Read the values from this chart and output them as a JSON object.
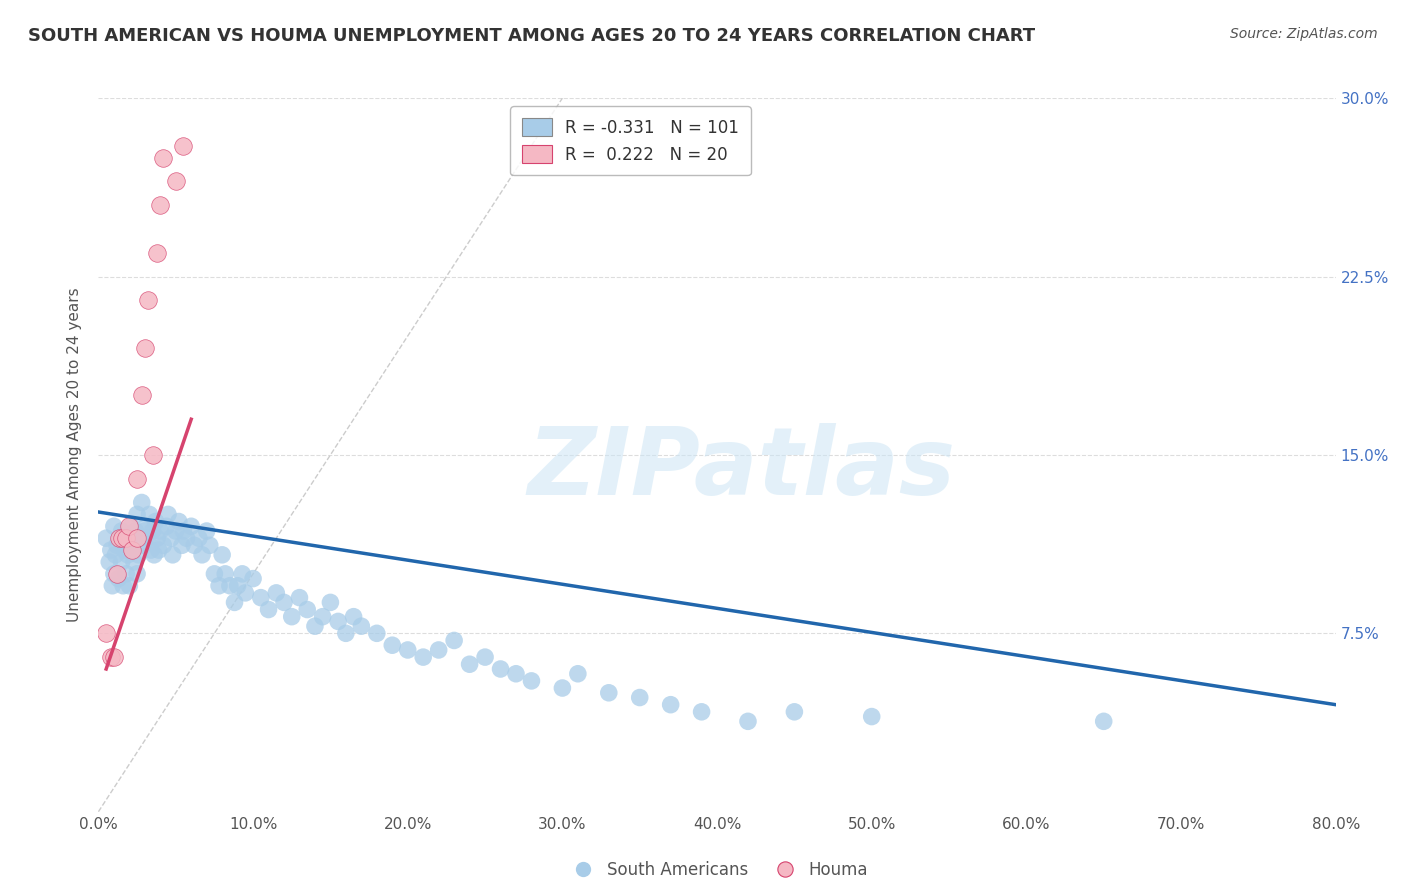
{
  "title": "SOUTH AMERICAN VS HOUMA UNEMPLOYMENT AMONG AGES 20 TO 24 YEARS CORRELATION CHART",
  "source": "Source: ZipAtlas.com",
  "ylabel": "Unemployment Among Ages 20 to 24 years",
  "xlim": [
    0,
    0.8
  ],
  "ylim": [
    0,
    0.3
  ],
  "xticks": [
    0.0,
    0.1,
    0.2,
    0.3,
    0.4,
    0.5,
    0.6,
    0.7,
    0.8
  ],
  "yticks": [
    0.0,
    0.075,
    0.15,
    0.225,
    0.3
  ],
  "ytick_labels_right": [
    "",
    "7.5%",
    "15.0%",
    "22.5%",
    "30.0%"
  ],
  "blue_color": "#a8cce8",
  "pink_color": "#f5b8c4",
  "trend_blue": "#2166ac",
  "trend_pink": "#d6436e",
  "diag_color": "#cccccc",
  "legend_R_blue": "-0.331",
  "legend_N_blue": "101",
  "legend_R_pink": "0.222",
  "legend_N_pink": "20",
  "watermark": "ZIPatlas",
  "legend_label_blue": "South Americans",
  "legend_label_pink": "Houma",
  "background_color": "#ffffff",
  "grid_color": "#dddddd",
  "blue_x": [
    0.005,
    0.007,
    0.008,
    0.009,
    0.01,
    0.01,
    0.011,
    0.012,
    0.013,
    0.014,
    0.015,
    0.015,
    0.016,
    0.017,
    0.018,
    0.018,
    0.019,
    0.02,
    0.02,
    0.021,
    0.022,
    0.023,
    0.024,
    0.025,
    0.025,
    0.026,
    0.027,
    0.028,
    0.029,
    0.03,
    0.031,
    0.032,
    0.033,
    0.034,
    0.035,
    0.036,
    0.037,
    0.038,
    0.039,
    0.04,
    0.042,
    0.044,
    0.045,
    0.047,
    0.048,
    0.05,
    0.052,
    0.054,
    0.055,
    0.057,
    0.06,
    0.062,
    0.065,
    0.067,
    0.07,
    0.072,
    0.075,
    0.078,
    0.08,
    0.082,
    0.085,
    0.088,
    0.09,
    0.093,
    0.095,
    0.1,
    0.105,
    0.11,
    0.115,
    0.12,
    0.125,
    0.13,
    0.135,
    0.14,
    0.145,
    0.15,
    0.155,
    0.16,
    0.165,
    0.17,
    0.18,
    0.19,
    0.2,
    0.21,
    0.22,
    0.23,
    0.24,
    0.25,
    0.26,
    0.27,
    0.28,
    0.3,
    0.31,
    0.33,
    0.35,
    0.37,
    0.39,
    0.42,
    0.45,
    0.5,
    0.65
  ],
  "blue_y": [
    0.115,
    0.105,
    0.11,
    0.095,
    0.12,
    0.1,
    0.108,
    0.112,
    0.098,
    0.115,
    0.105,
    0.118,
    0.095,
    0.11,
    0.1,
    0.112,
    0.108,
    0.115,
    0.095,
    0.12,
    0.11,
    0.105,
    0.118,
    0.1,
    0.125,
    0.108,
    0.115,
    0.13,
    0.112,
    0.118,
    0.12,
    0.115,
    0.125,
    0.11,
    0.118,
    0.108,
    0.122,
    0.115,
    0.11,
    0.118,
    0.112,
    0.12,
    0.125,
    0.115,
    0.108,
    0.118,
    0.122,
    0.112,
    0.118,
    0.115,
    0.12,
    0.112,
    0.115,
    0.108,
    0.118,
    0.112,
    0.1,
    0.095,
    0.108,
    0.1,
    0.095,
    0.088,
    0.095,
    0.1,
    0.092,
    0.098,
    0.09,
    0.085,
    0.092,
    0.088,
    0.082,
    0.09,
    0.085,
    0.078,
    0.082,
    0.088,
    0.08,
    0.075,
    0.082,
    0.078,
    0.075,
    0.07,
    0.068,
    0.065,
    0.068,
    0.072,
    0.062,
    0.065,
    0.06,
    0.058,
    0.055,
    0.052,
    0.058,
    0.05,
    0.048,
    0.045,
    0.042,
    0.038,
    0.042,
    0.04,
    0.038
  ],
  "pink_x": [
    0.005,
    0.008,
    0.01,
    0.012,
    0.013,
    0.015,
    0.018,
    0.02,
    0.022,
    0.025,
    0.025,
    0.028,
    0.03,
    0.032,
    0.035,
    0.038,
    0.04,
    0.042,
    0.05,
    0.055
  ],
  "pink_y": [
    0.075,
    0.065,
    0.065,
    0.1,
    0.115,
    0.115,
    0.115,
    0.12,
    0.11,
    0.14,
    0.115,
    0.175,
    0.195,
    0.215,
    0.15,
    0.235,
    0.255,
    0.275,
    0.265,
    0.28
  ],
  "blue_trend_x": [
    0.0,
    0.8
  ],
  "blue_trend_y": [
    0.126,
    0.045
  ],
  "pink_trend_x": [
    0.005,
    0.06
  ],
  "pink_trend_y": [
    0.06,
    0.165
  ]
}
